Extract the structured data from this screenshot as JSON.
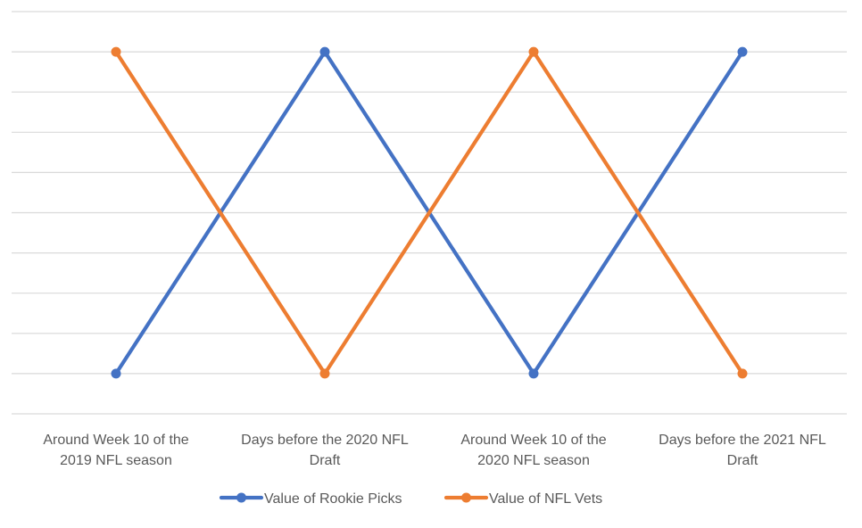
{
  "chart_data": {
    "type": "line",
    "title": "",
    "xlabel": "",
    "ylabel": "",
    "categories": [
      [
        "Around Week 10 of the",
        "2019 NFL season"
      ],
      [
        "Days before the 2020 NFL",
        "Draft"
      ],
      [
        "Around Week 10 of the",
        "2020 NFL season"
      ],
      [
        "Days before the 2021 NFL",
        "Draft"
      ]
    ],
    "ylim": [
      0,
      10
    ],
    "grid": true,
    "y_tick_labels_shown": false,
    "legend_position": "bottom",
    "series": [
      {
        "name": "Value of Rookie Picks",
        "color": "#4472C4",
        "values": [
          1,
          9,
          1,
          9
        ]
      },
      {
        "name": "Value of NFL Vets",
        "color": "#ED7D31",
        "values": [
          9,
          1,
          9,
          1
        ]
      }
    ]
  }
}
